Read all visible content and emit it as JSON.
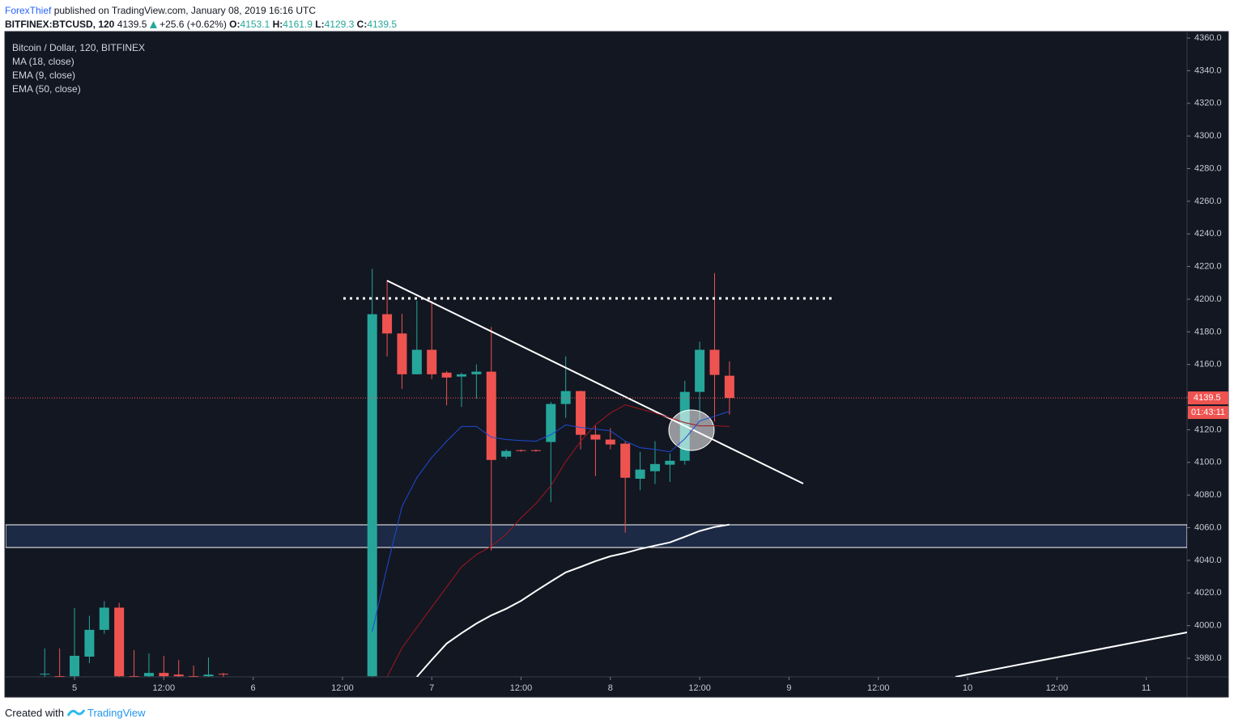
{
  "header": {
    "author": "ForexThief",
    "published": "published on TradingView.com, January 08, 2019 16:16 UTC",
    "symbol": "BITFINEX:BTCUSD, 120",
    "last": 4139.5,
    "change": "+25.6 (+0.62%)",
    "o_label": "O:",
    "open": 4153.1,
    "h_label": "H:",
    "high": 4161.9,
    "l_label": "L:",
    "low": 4129.3,
    "c_label": "C:",
    "close": 4139.5
  },
  "footer": {
    "created": "Created with",
    "brand": "TradingView"
  },
  "chart_data": {
    "type": "candlestick",
    "title": "Bitcoin / Dollar, 120, BITFINEX",
    "up_color": "#26a69a",
    "down_color": "#ef5350",
    "x": [
      -4,
      -2,
      0,
      2,
      4,
      6,
      8,
      10,
      12,
      14,
      16,
      18,
      20,
      40,
      42,
      44,
      46,
      48,
      50,
      52,
      54,
      56,
      58,
      60,
      62,
      64,
      66,
      68,
      70,
      72,
      74,
      76,
      78,
      80,
      82,
      84,
      86,
      88
    ],
    "open": [
      3970,
      3969,
      3969,
      3981,
      3997.4,
      4011,
      3969,
      3969,
      3971,
      3970,
      3969,
      3969,
      3970.5,
      3969,
      4190.8,
      4179,
      4154,
      4169,
      4155,
      4152.6,
      4154,
      4155.6,
      4103.5,
      4107.5,
      4107.5,
      4112.5,
      4135.8,
      4143.7,
      4117,
      4114,
      4111.5,
      4090,
      4094.6,
      4098.6,
      4101,
      4143.2,
      4169,
      4153.1
    ],
    "high": [
      3986,
      3986,
      4010.8,
      4006,
      4015,
      4014,
      3985,
      3983,
      3981.5,
      3979,
      3975.5,
      3980.5,
      3971,
      4218.6,
      4211.7,
      4191,
      4199,
      4199,
      4156,
      4155,
      4160,
      4183,
      4108,
      4108,
      4108,
      4137,
      4165,
      4144,
      4122.4,
      4121,
      4113,
      4106.5,
      4113,
      4105.5,
      4150,
      4174,
      4216,
      4161.9
    ],
    "low": [
      3965,
      3965,
      3965,
      3977,
      3995,
      3965,
      3965,
      3965,
      3965,
      3965,
      3965,
      3965,
      3965,
      3965,
      4165,
      4145,
      4154,
      4151,
      4135,
      4134,
      4139,
      4046,
      4102,
      4106.5,
      4106.5,
      4075.7,
      4127.3,
      4108,
      4091.6,
      4108,
      4057,
      4083,
      4086.7,
      4088,
      4098.6,
      4125,
      4125,
      4129.3
    ],
    "close": [
      3970.5,
      3968,
      3981.5,
      3997.4,
      4011,
      3969,
      3968,
      3971,
      3969,
      3969,
      3968,
      3970,
      3970,
      4190.8,
      4179,
      4154,
      4169,
      4154,
      4152,
      4154,
      4155.6,
      4101.5,
      4107,
      4107,
      4107,
      4135.8,
      4143.7,
      4116.9,
      4114,
      4111,
      4090.6,
      4095.6,
      4099,
      4101,
      4143.2,
      4169,
      4153.6,
      4139.5
    ],
    "series": [
      {
        "name": "MA (18, close)",
        "color": "#a3161c",
        "x": [
          42,
          44,
          46,
          48,
          50,
          52,
          54,
          56,
          58,
          60,
          62,
          64,
          66,
          68,
          70,
          72,
          74,
          76,
          78,
          80,
          82,
          84,
          86,
          88
        ],
        "values": [
          3968.6,
          3986.4,
          3998.9,
          4011.3,
          4023.7,
          4036,
          4043.5,
          4048.5,
          4056,
          4066,
          4074.8,
          4085.7,
          4100.5,
          4113,
          4123,
          4130.3,
          4135.3,
          4132.8,
          4130.3,
          4127.3,
          4124.4,
          4122.4,
          4122.4,
          4122
        ]
      },
      {
        "name": "EMA (9, close)",
        "color": "#1e4bd2",
        "x": [
          40,
          42,
          44,
          46,
          48,
          50,
          52,
          54,
          56,
          58,
          60,
          62,
          64,
          66,
          68,
          70,
          72,
          74,
          76,
          78,
          80,
          82,
          84,
          86,
          88
        ],
        "values": [
          3996.4,
          4036,
          4073,
          4090.6,
          4103,
          4113,
          4122,
          4122,
          4115.4,
          4114,
          4113.4,
          4113,
          4117,
          4123,
          4121.4,
          4120.4,
          4119.4,
          4113,
          4109,
          4108,
          4106.5,
          4114.4,
          4125.4,
          4128.3,
          4131.3
        ]
      },
      {
        "name": "EMA (50, close)",
        "color": "#ffffff",
        "x": [
          46,
          48,
          50,
          52,
          54,
          56,
          58,
          60,
          62,
          64,
          66,
          68,
          70,
          72,
          74,
          76,
          78,
          80,
          82,
          84,
          86,
          88
        ],
        "values": [
          3968.6,
          3979,
          3989,
          3995.4,
          4001.3,
          4006.3,
          4010.3,
          4015.2,
          4021.2,
          4027,
          4032.6,
          4036,
          4039.5,
          4042.5,
          4044.5,
          4047,
          4049,
          4051,
          4054.4,
          4058,
          4060.4,
          4061.9
        ]
      }
    ],
    "last_price": 4139.5,
    "countdown": "01:43:11",
    "xlim": [
      -9.25,
      149.48
    ],
    "ylim": [
      3968.6,
      4363.5
    ],
    "xticks": [
      {
        "value": 0,
        "label": "5"
      },
      {
        "value": 12,
        "label": "12:00"
      },
      {
        "value": 24,
        "label": "6"
      },
      {
        "value": 36,
        "label": "12:00"
      },
      {
        "value": 48,
        "label": "7"
      },
      {
        "value": 60,
        "label": "12:00"
      },
      {
        "value": 72,
        "label": "8"
      },
      {
        "value": 84,
        "label": "12:00"
      },
      {
        "value": 96,
        "label": "9"
      },
      {
        "value": 108,
        "label": "12:00"
      },
      {
        "value": 120,
        "label": "10"
      },
      {
        "value": 132,
        "label": "12:00"
      },
      {
        "value": 144,
        "label": "11"
      }
    ],
    "yticks": [
      {
        "value": 3980,
        "label": "3980.0"
      },
      {
        "value": 4000,
        "label": "4000.0"
      },
      {
        "value": 4020,
        "label": "4020.0"
      },
      {
        "value": 4040,
        "label": "4040.0"
      },
      {
        "value": 4060,
        "label": "4060.0"
      },
      {
        "value": 4080,
        "label": "4080.0"
      },
      {
        "value": 4100,
        "label": "4100.0"
      },
      {
        "value": 4120,
        "label": "4120.0"
      },
      {
        "value": 4140,
        "label": "4140.0"
      },
      {
        "value": 4160,
        "label": "4160.0"
      },
      {
        "value": 4180,
        "label": "4180.0"
      },
      {
        "value": 4200,
        "label": "4200.0"
      },
      {
        "value": 4220,
        "label": "4220.0"
      },
      {
        "value": 4240,
        "label": "4240.0"
      },
      {
        "value": 4260,
        "label": "4260.0"
      },
      {
        "value": 4280,
        "label": "4280.0"
      },
      {
        "value": 4300,
        "label": "4300.0"
      },
      {
        "value": 4320,
        "label": "4320.0"
      },
      {
        "value": 4340,
        "label": "4340.0"
      },
      {
        "value": 4360,
        "label": "4360.0"
      }
    ]
  }
}
